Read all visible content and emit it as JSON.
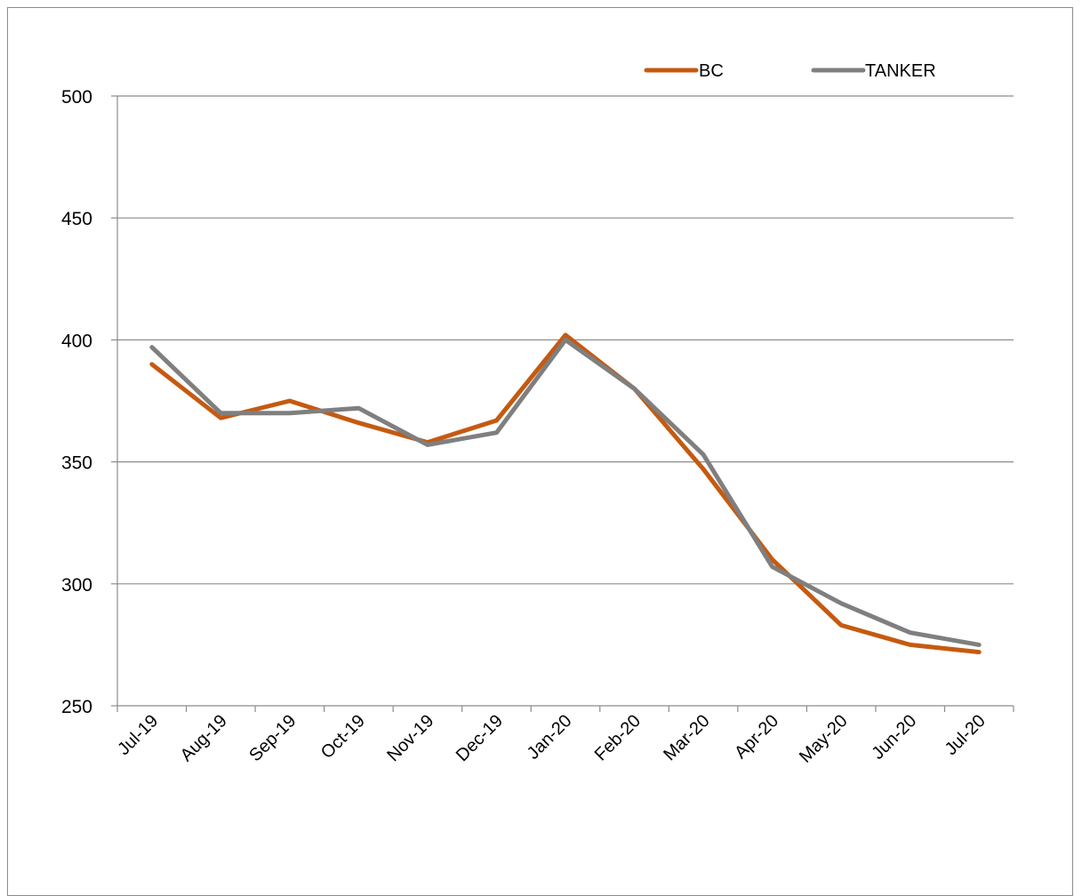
{
  "chart_data": {
    "type": "line",
    "title": "",
    "xlabel": "",
    "ylabel": "",
    "categories": [
      "Jul-19",
      "Aug-19",
      "Sep-19",
      "Oct-19",
      "Nov-19",
      "Dec-19",
      "Jan-20",
      "Feb-20",
      "Mar-20",
      "Apr-20",
      "May-20",
      "Jun-20",
      "Jul-20"
    ],
    "ylim": [
      250,
      500
    ],
    "yticks": [
      "250",
      "300",
      "350",
      "400",
      "450",
      "500"
    ],
    "grid": "horizontal",
    "legend_position": "top-right",
    "series": [
      {
        "name": "BC",
        "color": "#c55a11",
        "values": [
          390,
          368,
          375,
          366,
          358,
          367,
          402,
          380,
          347,
          310,
          283,
          275,
          272
        ]
      },
      {
        "name": "TANKER",
        "color": "#7f7f7f",
        "values": [
          397,
          370,
          370,
          372,
          357,
          362,
          400,
          380,
          353,
          307,
          292,
          280,
          275
        ]
      }
    ]
  }
}
